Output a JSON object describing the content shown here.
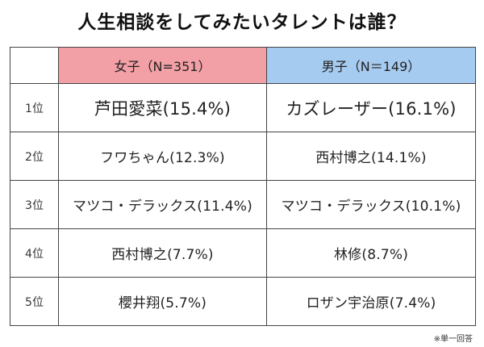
{
  "title": "人生相談をしてみたいタレントは誰？",
  "headers": {
    "female": "女子（N=351）",
    "male": "男子（N＝149）"
  },
  "rows": [
    {
      "rank": "1位",
      "female": "芦田愛菜(15.4%)",
      "male": "カズレーザー(16.1%)"
    },
    {
      "rank": "2位",
      "female": "フワちゃん(12.3%)",
      "male": "西村博之(14.1%)"
    },
    {
      "rank": "3位",
      "female": "マツコ・デラックス(11.4%)",
      "male": "マツコ・デラックス(10.1%)"
    },
    {
      "rank": "4位",
      "female": "西村博之(7.7%)",
      "male": "林修(8.7%)"
    },
    {
      "rank": "5位",
      "female": "櫻井翔(5.7%)",
      "male": "ロザン宇治原(7.4%)"
    }
  ],
  "note": "※単一回答",
  "colors": {
    "female_header": "#f2a0a6",
    "male_header": "#a6cbf0"
  }
}
